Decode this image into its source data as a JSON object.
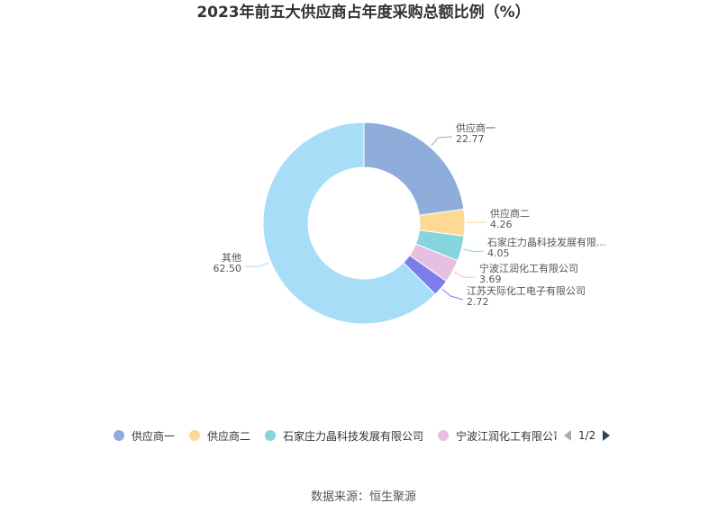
{
  "chart_data": {
    "type": "pie",
    "title": "2023年前五大供应商占年度采购总额比例（%）",
    "categories": [
      "供应商一",
      "供应商二",
      "石家庄力晶科技发展有限公司",
      "宁波江润化工有限公司",
      "江苏天际化工电子有限公司",
      "其他"
    ],
    "label_names": [
      "供应商一",
      "供应商二",
      "石家庄力晶科技发展有限...",
      "宁波江润化工有限公司",
      "江苏天际化工电子有限公司",
      "其他"
    ],
    "values": [
      22.77,
      4.26,
      4.05,
      3.69,
      2.72,
      62.5
    ],
    "value_labels": [
      "22.77",
      "4.26",
      "4.05",
      "3.69",
      "2.72",
      "62.50"
    ],
    "colors": [
      "#8eadda",
      "#fdd995",
      "#84d6dc",
      "#e7bfe0",
      "#7b7ee9",
      "#a8ddf8"
    ],
    "donut": true,
    "legend": {
      "position": "bottom",
      "visible_items": [
        "供应商一",
        "供应商二",
        "石家庄力晶科技发展有限公司",
        "宁波江润化工有限公司"
      ],
      "page": "1/2"
    }
  },
  "source": "数据来源：恒生聚源"
}
